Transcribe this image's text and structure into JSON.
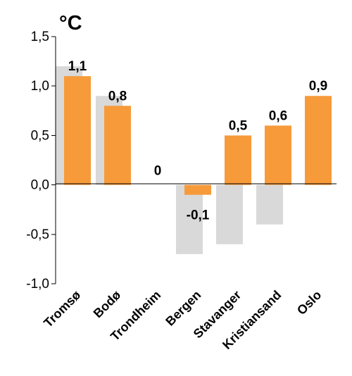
{
  "chart_data": {
    "type": "bar",
    "ylabel": "°C",
    "categories": [
      "Tromsø",
      "Bodø",
      "Trondheim",
      "Bergen",
      "Stavanger",
      "Kristiansand",
      "Oslo"
    ],
    "series": [
      {
        "values": [
          1.2,
          0.9,
          0.0,
          -0.7,
          -0.6,
          -0.4,
          0.0
        ],
        "color": "#d9d9d9"
      },
      {
        "values": [
          1.1,
          0.8,
          0.0,
          -0.1,
          0.5,
          0.6,
          0.9
        ],
        "color": "#f79a3a",
        "data_labels": [
          "1,1",
          "0,8",
          "0",
          "-0,1",
          "0,5",
          "0,6",
          "0,9"
        ]
      }
    ],
    "ylim": [
      -1.0,
      1.5
    ],
    "yticks": [
      -1.0,
      -0.5,
      0.0,
      0.5,
      1.0,
      1.5
    ],
    "ytick_labels": [
      "-1,0",
      "-0,5",
      "0,0",
      "0,5",
      "1,0",
      "1,5"
    ],
    "grid": false,
    "legend": "none"
  }
}
